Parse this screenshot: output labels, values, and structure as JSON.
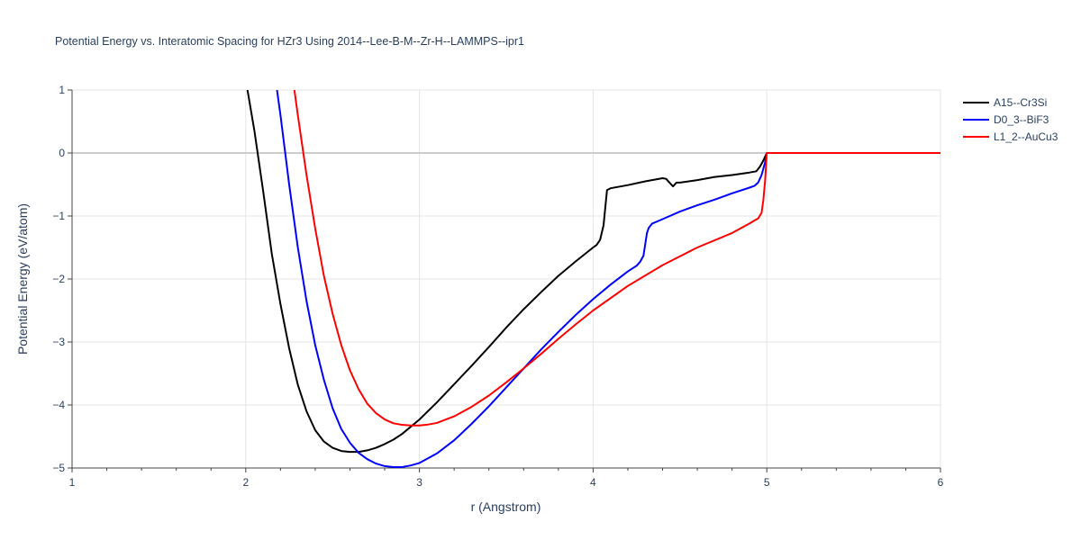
{
  "chart_data": {
    "type": "line",
    "title": "Potential Energy vs. Interatomic Spacing for HZr3 Using 2014--Lee-B-M--Zr-H--LAMMPS--ipr1",
    "xlabel": "r (Angstrom)",
    "ylabel": "Potential Energy (eV/atom)",
    "xlim": [
      1,
      6
    ],
    "ylim": [
      -5,
      1
    ],
    "x_ticks": [
      1,
      2,
      3,
      4,
      5,
      6
    ],
    "y_ticks": [
      1,
      0,
      -1,
      -2,
      -3,
      -4,
      -5
    ],
    "x_tick_labels": [
      "1",
      "2",
      "3",
      "4",
      "5",
      "6"
    ],
    "y_tick_labels": [
      "1",
      "0",
      "−1",
      "−2",
      "−3",
      "−4",
      "−5"
    ],
    "grid": true,
    "legend_position": "top-right",
    "series": [
      {
        "name": "A15--Cr3Si",
        "color": "#000000",
        "x": [
          2.01,
          2.05,
          2.1,
          2.15,
          2.2,
          2.25,
          2.3,
          2.35,
          2.4,
          2.45,
          2.5,
          2.55,
          2.6,
          2.65,
          2.7,
          2.75,
          2.8,
          2.85,
          2.9,
          3.0,
          3.1,
          3.2,
          3.3,
          3.4,
          3.5,
          3.6,
          3.7,
          3.8,
          3.9,
          4.0,
          4.02,
          4.04,
          4.06,
          4.08,
          4.1,
          4.2,
          4.3,
          4.4,
          4.42,
          4.44,
          4.46,
          4.48,
          4.5,
          4.6,
          4.7,
          4.8,
          4.9,
          4.94,
          4.96,
          4.98,
          5.0,
          5.5,
          6.0
        ],
        "y": [
          1.0,
          0.35,
          -0.6,
          -1.6,
          -2.4,
          -3.1,
          -3.68,
          -4.1,
          -4.4,
          -4.58,
          -4.68,
          -4.73,
          -4.745,
          -4.745,
          -4.72,
          -4.68,
          -4.62,
          -4.55,
          -4.46,
          -4.23,
          -3.96,
          -3.67,
          -3.38,
          -3.08,
          -2.77,
          -2.48,
          -2.21,
          -1.95,
          -1.72,
          -1.5,
          -1.46,
          -1.38,
          -1.15,
          -0.59,
          -0.56,
          -0.51,
          -0.45,
          -0.4,
          -0.41,
          -0.47,
          -0.53,
          -0.47,
          -0.47,
          -0.43,
          -0.38,
          -0.35,
          -0.31,
          -0.29,
          -0.22,
          -0.12,
          0.0,
          0.0,
          0.0
        ]
      },
      {
        "name": "D0_3--BiF3",
        "color": "#0000ff",
        "x": [
          2.18,
          2.2,
          2.25,
          2.3,
          2.35,
          2.4,
          2.45,
          2.5,
          2.55,
          2.6,
          2.65,
          2.7,
          2.75,
          2.8,
          2.85,
          2.9,
          2.95,
          3.0,
          3.1,
          3.2,
          3.3,
          3.4,
          3.5,
          3.6,
          3.7,
          3.8,
          3.9,
          4.0,
          4.1,
          4.2,
          4.25,
          4.27,
          4.29,
          4.31,
          4.32,
          4.34,
          4.4,
          4.5,
          4.6,
          4.7,
          4.8,
          4.9,
          4.93,
          4.95,
          4.97,
          4.99,
          5.0,
          5.5,
          6.0
        ],
        "y": [
          1.0,
          0.6,
          -0.5,
          -1.5,
          -2.35,
          -3.05,
          -3.6,
          -4.05,
          -4.38,
          -4.6,
          -4.76,
          -4.86,
          -4.93,
          -4.97,
          -4.985,
          -4.985,
          -4.96,
          -4.92,
          -4.77,
          -4.56,
          -4.3,
          -4.02,
          -3.72,
          -3.42,
          -3.12,
          -2.84,
          -2.57,
          -2.32,
          -2.09,
          -1.88,
          -1.79,
          -1.73,
          -1.63,
          -1.27,
          -1.19,
          -1.12,
          -1.05,
          -0.93,
          -0.83,
          -0.74,
          -0.64,
          -0.55,
          -0.52,
          -0.47,
          -0.35,
          -0.15,
          0.0,
          0.0,
          0.0
        ]
      },
      {
        "name": "L1_2--AuCu3",
        "color": "#ff0000",
        "x": [
          2.28,
          2.3,
          2.35,
          2.4,
          2.45,
          2.5,
          2.55,
          2.6,
          2.65,
          2.7,
          2.75,
          2.8,
          2.85,
          2.9,
          2.95,
          3.0,
          3.05,
          3.1,
          3.2,
          3.3,
          3.4,
          3.5,
          3.6,
          3.7,
          3.8,
          3.9,
          4.0,
          4.2,
          4.4,
          4.6,
          4.8,
          4.9,
          4.93,
          4.95,
          4.97,
          4.98,
          4.99,
          5.0,
          5.5,
          6.0
        ],
        "y": [
          1.0,
          0.6,
          -0.35,
          -1.2,
          -1.95,
          -2.55,
          -3.05,
          -3.45,
          -3.75,
          -3.98,
          -4.13,
          -4.23,
          -4.29,
          -4.315,
          -4.325,
          -4.325,
          -4.31,
          -4.285,
          -4.18,
          -4.03,
          -3.85,
          -3.64,
          -3.42,
          -3.19,
          -2.95,
          -2.72,
          -2.5,
          -2.11,
          -1.78,
          -1.5,
          -1.27,
          -1.12,
          -1.07,
          -1.04,
          -0.95,
          -0.75,
          -0.45,
          0.0,
          0.0,
          0.0
        ]
      }
    ]
  }
}
